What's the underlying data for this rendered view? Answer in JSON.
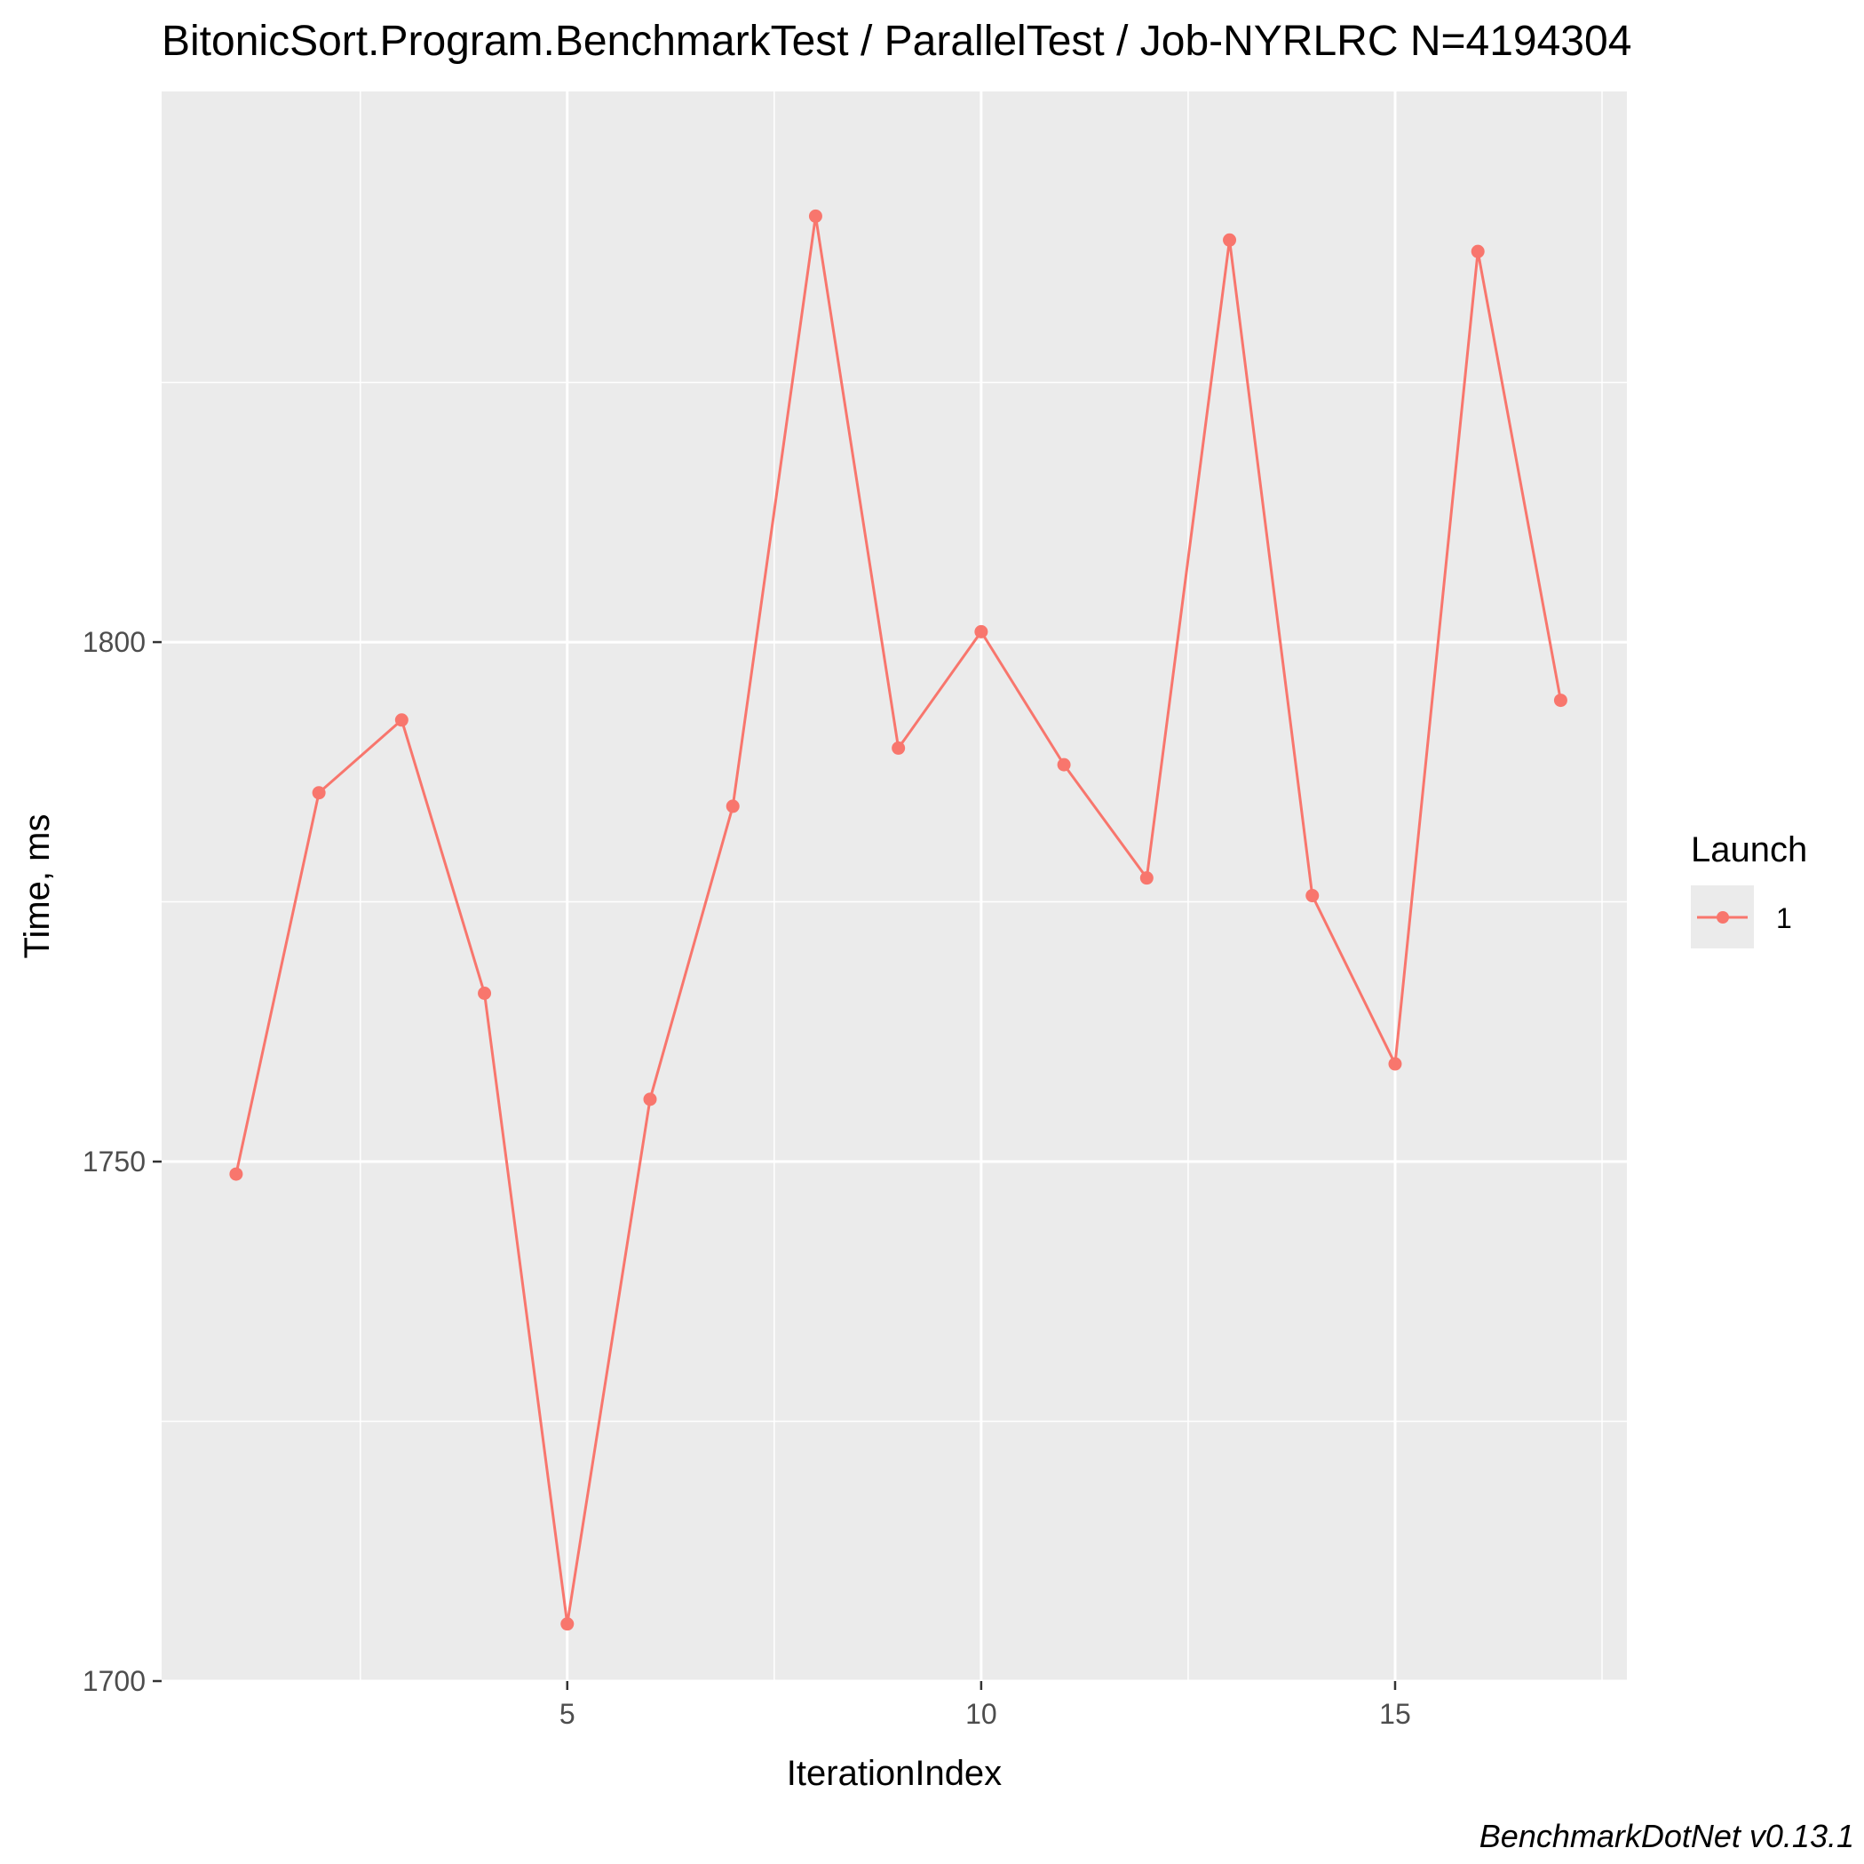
{
  "chart_data": {
    "type": "line",
    "title": "BitonicSort.Program.BenchmarkTest / ParallelTest / Job-NYRLRC N=4194304",
    "xlabel": "IterationIndex",
    "ylabel": "Time, ms",
    "caption": "BenchmarkDotNet v0.13.1",
    "x_ticks": [
      5,
      10,
      15
    ],
    "y_ticks": [
      1700,
      1750,
      1800
    ],
    "xlim": [
      0.1,
      17.8
    ],
    "ylim": [
      1700,
      1853
    ],
    "grid": true,
    "legend": {
      "title": "Launch",
      "position": "right",
      "entries": [
        "1"
      ]
    },
    "series": [
      {
        "name": "1",
        "color": "#F8766D",
        "x": [
          1,
          2,
          3,
          4,
          5,
          6,
          7,
          8,
          9,
          10,
          11,
          12,
          13,
          14,
          15,
          16,
          17
        ],
        "y": [
          1748.8,
          1785.5,
          1792.5,
          1766.2,
          1705.5,
          1756.0,
          1784.2,
          1841.0,
          1789.8,
          1801.0,
          1788.2,
          1777.3,
          1838.7,
          1775.6,
          1759.4,
          1837.6,
          1794.4
        ]
      }
    ]
  }
}
